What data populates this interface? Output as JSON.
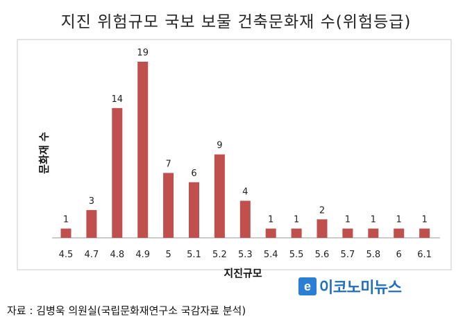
{
  "chart_data": {
    "type": "bar",
    "title": "지진 위험규모 국보 보물 건축문화재 수(위험등급)",
    "xlabel": "지진규모",
    "ylabel": "문화재 수",
    "categories": [
      "4.5",
      "4.7",
      "4.8",
      "4.9",
      "5",
      "5.1",
      "5.2",
      "5.3",
      "5.4",
      "5.5",
      "5.6",
      "5.7",
      "5.8",
      "6",
      "6.1"
    ],
    "values": [
      1,
      3,
      14,
      19,
      7,
      6,
      9,
      4,
      1,
      1,
      2,
      1,
      1,
      1,
      1
    ],
    "ylim": [
      0,
      19
    ],
    "grid": false,
    "data_labels": true,
    "bar_color": "#c0504d"
  },
  "logo": {
    "mark": "e",
    "text": "이코노미뉴스"
  },
  "source": "자료 : 김병욱 의원실(국립문화재연구소 국감자료 분석)"
}
